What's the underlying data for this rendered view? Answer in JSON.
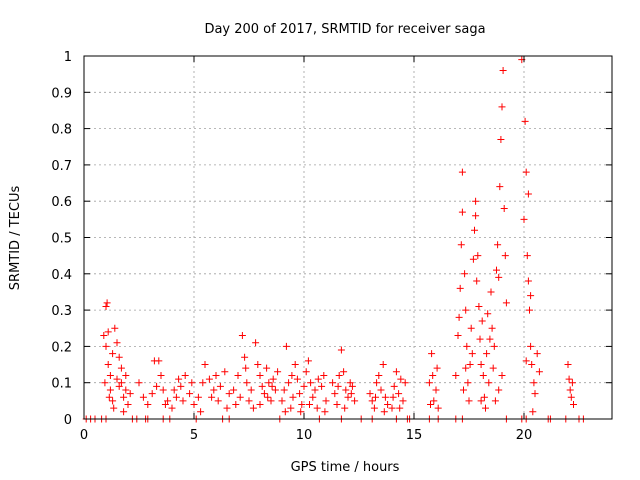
{
  "chart_data": {
    "type": "scatter",
    "title": "Day 200 of 2017, SRMTID for receiver saga",
    "xlabel": "GPS time / hours",
    "ylabel": "SRMTID / TECUs",
    "xlim": [
      0,
      24
    ],
    "ylim": [
      0,
      1
    ],
    "grid": true,
    "x_ticks": [
      0,
      5,
      10,
      15,
      20
    ],
    "x_tick_labels": [
      "0",
      "5",
      "10",
      "15",
      "20"
    ],
    "y_ticks": [
      0,
      0.1,
      0.2,
      0.3,
      0.4,
      0.5,
      0.6,
      0.7,
      0.8,
      0.9,
      1
    ],
    "y_tick_labels": [
      "0",
      "0.1",
      "0.2",
      "0.3",
      "0.4",
      "0.5",
      "0.6",
      "0.7",
      "0.8",
      "0.9",
      "1"
    ],
    "marker": "+",
    "color": "#ff0000",
    "series": [
      {
        "name": "SRMTID",
        "points": [
          [
            0.1,
            0.0
          ],
          [
            0.3,
            0.0
          ],
          [
            0.5,
            0.0
          ],
          [
            0.8,
            0.0
          ],
          [
            1.0,
            0.0
          ],
          [
            2.2,
            0.0
          ],
          [
            2.4,
            0.0
          ],
          [
            2.8,
            0.0
          ],
          [
            2.9,
            0.0
          ],
          [
            3.6,
            0.0
          ],
          [
            3.9,
            0.0
          ],
          [
            5.1,
            0.0
          ],
          [
            6.3,
            0.0
          ],
          [
            6.6,
            0.0
          ],
          [
            8.9,
            0.0
          ],
          [
            10.7,
            0.0
          ],
          [
            11.7,
            0.0
          ],
          [
            12.6,
            0.0
          ],
          [
            13.1,
            0.0
          ],
          [
            14.2,
            0.0
          ],
          [
            14.7,
            0.0
          ],
          [
            14.8,
            0.0
          ],
          [
            15.7,
            0.0
          ],
          [
            16.1,
            0.0
          ],
          [
            16.9,
            0.0
          ],
          [
            17.2,
            0.0
          ],
          [
            19.2,
            0.0
          ],
          [
            19.9,
            0.0
          ],
          [
            20.1,
            0.0
          ],
          [
            21.1,
            0.0
          ],
          [
            21.2,
            0.0
          ],
          [
            21.9,
            0.0
          ],
          [
            22.5,
            0.0
          ],
          [
            22.7,
            0.0
          ],
          [
            0.9,
            0.23
          ],
          [
            1.0,
            0.31
          ],
          [
            1.05,
            0.32
          ],
          [
            1.1,
            0.24
          ],
          [
            1.0,
            0.2
          ],
          [
            1.1,
            0.15
          ],
          [
            1.2,
            0.12
          ],
          [
            1.3,
            0.18
          ],
          [
            1.4,
            0.25
          ],
          [
            1.5,
            0.21
          ],
          [
            1.6,
            0.17
          ],
          [
            1.7,
            0.1
          ],
          [
            1.8,
            0.06
          ],
          [
            1.9,
            0.08
          ],
          [
            2.0,
            0.04
          ],
          [
            1.2,
            0.08
          ],
          [
            1.3,
            0.05
          ],
          [
            1.5,
            0.11
          ],
          [
            1.7,
            0.14
          ],
          [
            1.9,
            0.12
          ],
          [
            2.1,
            0.07
          ],
          [
            0.95,
            0.1
          ],
          [
            1.15,
            0.06
          ],
          [
            1.35,
            0.03
          ],
          [
            1.6,
            0.09
          ],
          [
            1.8,
            0.02
          ],
          [
            2.5,
            0.1
          ],
          [
            2.7,
            0.06
          ],
          [
            2.9,
            0.04
          ],
          [
            3.1,
            0.07
          ],
          [
            3.2,
            0.16
          ],
          [
            3.4,
            0.16
          ],
          [
            3.5,
            0.12
          ],
          [
            3.6,
            0.08
          ],
          [
            3.8,
            0.05
          ],
          [
            4.0,
            0.03
          ],
          [
            4.2,
            0.06
          ],
          [
            4.4,
            0.09
          ],
          [
            4.6,
            0.12
          ],
          [
            4.8,
            0.07
          ],
          [
            5.0,
            0.04
          ],
          [
            5.2,
            0.06
          ],
          [
            5.4,
            0.1
          ],
          [
            5.5,
            0.15
          ],
          [
            5.7,
            0.11
          ],
          [
            5.9,
            0.08
          ],
          [
            6.1,
            0.05
          ],
          [
            6.2,
            0.09
          ],
          [
            6.4,
            0.13
          ],
          [
            6.6,
            0.07
          ],
          [
            3.3,
            0.09
          ],
          [
            3.7,
            0.04
          ],
          [
            4.1,
            0.08
          ],
          [
            4.5,
            0.05
          ],
          [
            4.9,
            0.1
          ],
          [
            5.3,
            0.02
          ],
          [
            5.8,
            0.06
          ],
          [
            6.0,
            0.12
          ],
          [
            6.5,
            0.03
          ],
          [
            4.3,
            0.11
          ],
          [
            6.8,
            0.08
          ],
          [
            7.0,
            0.12
          ],
          [
            7.1,
            0.06
          ],
          [
            7.2,
            0.23
          ],
          [
            7.3,
            0.17
          ],
          [
            7.4,
            0.1
          ],
          [
            7.5,
            0.05
          ],
          [
            7.6,
            0.08
          ],
          [
            7.8,
            0.21
          ],
          [
            7.9,
            0.15
          ],
          [
            8.0,
            0.12
          ],
          [
            8.1,
            0.09
          ],
          [
            8.2,
            0.07
          ],
          [
            8.3,
            0.14
          ],
          [
            8.4,
            0.1
          ],
          [
            8.5,
            0.05
          ],
          [
            8.6,
            0.11
          ],
          [
            8.7,
            0.08
          ],
          [
            8.8,
            0.13
          ],
          [
            7.7,
            0.03
          ],
          [
            8.0,
            0.04
          ],
          [
            8.35,
            0.06
          ],
          [
            6.9,
            0.04
          ],
          [
            7.35,
            0.14
          ],
          [
            8.55,
            0.09
          ],
          [
            9.0,
            0.05
          ],
          [
            9.1,
            0.08
          ],
          [
            9.2,
            0.2
          ],
          [
            9.3,
            0.1
          ],
          [
            9.4,
            0.03
          ],
          [
            9.5,
            0.06
          ],
          [
            9.6,
            0.15
          ],
          [
            9.7,
            0.11
          ],
          [
            9.8,
            0.07
          ],
          [
            9.9,
            0.04
          ],
          [
            10.0,
            0.09
          ],
          [
            10.1,
            0.13
          ],
          [
            10.2,
            0.16
          ],
          [
            10.3,
            0.1
          ],
          [
            10.4,
            0.06
          ],
          [
            10.5,
            0.08
          ],
          [
            10.6,
            0.03
          ],
          [
            10.8,
            0.09
          ],
          [
            10.9,
            0.12
          ],
          [
            11.0,
            0.05
          ],
          [
            9.15,
            0.02
          ],
          [
            9.45,
            0.12
          ],
          [
            9.85,
            0.02
          ],
          [
            10.25,
            0.04
          ],
          [
            10.65,
            0.11
          ],
          [
            10.95,
            0.02
          ],
          [
            11.3,
            0.1
          ],
          [
            11.4,
            0.07
          ],
          [
            11.5,
            0.04
          ],
          [
            11.6,
            0.12
          ],
          [
            11.7,
            0.19
          ],
          [
            11.8,
            0.13
          ],
          [
            11.9,
            0.08
          ],
          [
            12.0,
            0.06
          ],
          [
            12.1,
            0.1
          ],
          [
            12.2,
            0.09
          ],
          [
            12.3,
            0.05
          ],
          [
            11.55,
            0.09
          ],
          [
            11.85,
            0.03
          ],
          [
            12.15,
            0.07
          ],
          [
            13.0,
            0.07
          ],
          [
            13.1,
            0.05
          ],
          [
            13.2,
            0.03
          ],
          [
            13.3,
            0.1
          ],
          [
            13.4,
            0.12
          ],
          [
            13.5,
            0.08
          ],
          [
            13.6,
            0.15
          ],
          [
            13.7,
            0.06
          ],
          [
            13.8,
            0.04
          ],
          [
            14.0,
            0.03
          ],
          [
            14.1,
            0.09
          ],
          [
            14.2,
            0.13
          ],
          [
            14.3,
            0.07
          ],
          [
            14.4,
            0.11
          ],
          [
            14.5,
            0.05
          ],
          [
            14.6,
            0.1
          ],
          [
            13.25,
            0.06
          ],
          [
            13.65,
            0.02
          ],
          [
            14.05,
            0.06
          ],
          [
            14.35,
            0.03
          ],
          [
            15.7,
            0.1
          ],
          [
            15.8,
            0.18
          ],
          [
            15.85,
            0.12
          ],
          [
            15.9,
            0.05
          ],
          [
            16.0,
            0.08
          ],
          [
            16.1,
            0.03
          ],
          [
            16.05,
            0.14
          ],
          [
            15.75,
            0.04
          ],
          [
            16.9,
            0.12
          ],
          [
            17.0,
            0.23
          ],
          [
            17.05,
            0.28
          ],
          [
            17.1,
            0.36
          ],
          [
            17.15,
            0.48
          ],
          [
            17.2,
            0.57
          ],
          [
            17.2,
            0.68
          ],
          [
            17.3,
            0.4
          ],
          [
            17.35,
            0.3
          ],
          [
            17.4,
            0.2
          ],
          [
            17.45,
            0.1
          ],
          [
            17.5,
            0.05
          ],
          [
            17.55,
            0.15
          ],
          [
            17.6,
            0.25
          ],
          [
            17.7,
            0.44
          ],
          [
            17.75,
            0.52
          ],
          [
            17.8,
            0.6
          ],
          [
            17.8,
            0.56
          ],
          [
            17.85,
            0.38
          ],
          [
            17.9,
            0.45
          ],
          [
            17.95,
            0.31
          ],
          [
            18.0,
            0.22
          ],
          [
            18.05,
            0.15
          ],
          [
            18.1,
            0.27
          ],
          [
            18.15,
            0.12
          ],
          [
            18.2,
            0.06
          ],
          [
            18.3,
            0.18
          ],
          [
            18.35,
            0.29
          ],
          [
            18.4,
            0.1
          ],
          [
            18.45,
            0.22
          ],
          [
            18.5,
            0.35
          ],
          [
            18.55,
            0.25
          ],
          [
            18.6,
            0.14
          ],
          [
            18.7,
            0.05
          ],
          [
            18.75,
            0.41
          ],
          [
            18.8,
            0.48
          ],
          [
            18.85,
            0.39
          ],
          [
            18.9,
            0.64
          ],
          [
            18.95,
            0.77
          ],
          [
            19.0,
            0.86
          ],
          [
            19.05,
            0.96
          ],
          [
            19.1,
            0.58
          ],
          [
            19.15,
            0.45
          ],
          [
            19.2,
            0.32
          ],
          [
            17.25,
            0.08
          ],
          [
            17.65,
            0.18
          ],
          [
            18.25,
            0.03
          ],
          [
            18.65,
            0.2
          ],
          [
            19.0,
            0.12
          ],
          [
            17.35,
            0.14
          ],
          [
            18.05,
            0.05
          ],
          [
            18.85,
            0.08
          ],
          [
            19.9,
            0.99
          ],
          [
            20.05,
            0.82
          ],
          [
            20.1,
            0.68
          ],
          [
            20.0,
            0.55
          ],
          [
            20.15,
            0.45
          ],
          [
            20.2,
            0.38
          ],
          [
            20.25,
            0.3
          ],
          [
            20.3,
            0.2
          ],
          [
            20.35,
            0.15
          ],
          [
            20.45,
            0.1
          ],
          [
            20.5,
            0.07
          ],
          [
            20.1,
            0.16
          ],
          [
            20.2,
            0.62
          ],
          [
            20.3,
            0.34
          ],
          [
            20.6,
            0.18
          ],
          [
            20.7,
            0.13
          ],
          [
            20.4,
            0.02
          ],
          [
            22.0,
            0.15
          ],
          [
            22.05,
            0.11
          ],
          [
            22.1,
            0.08
          ],
          [
            22.15,
            0.06
          ],
          [
            22.2,
            0.1
          ],
          [
            22.25,
            0.04
          ]
        ]
      }
    ]
  }
}
